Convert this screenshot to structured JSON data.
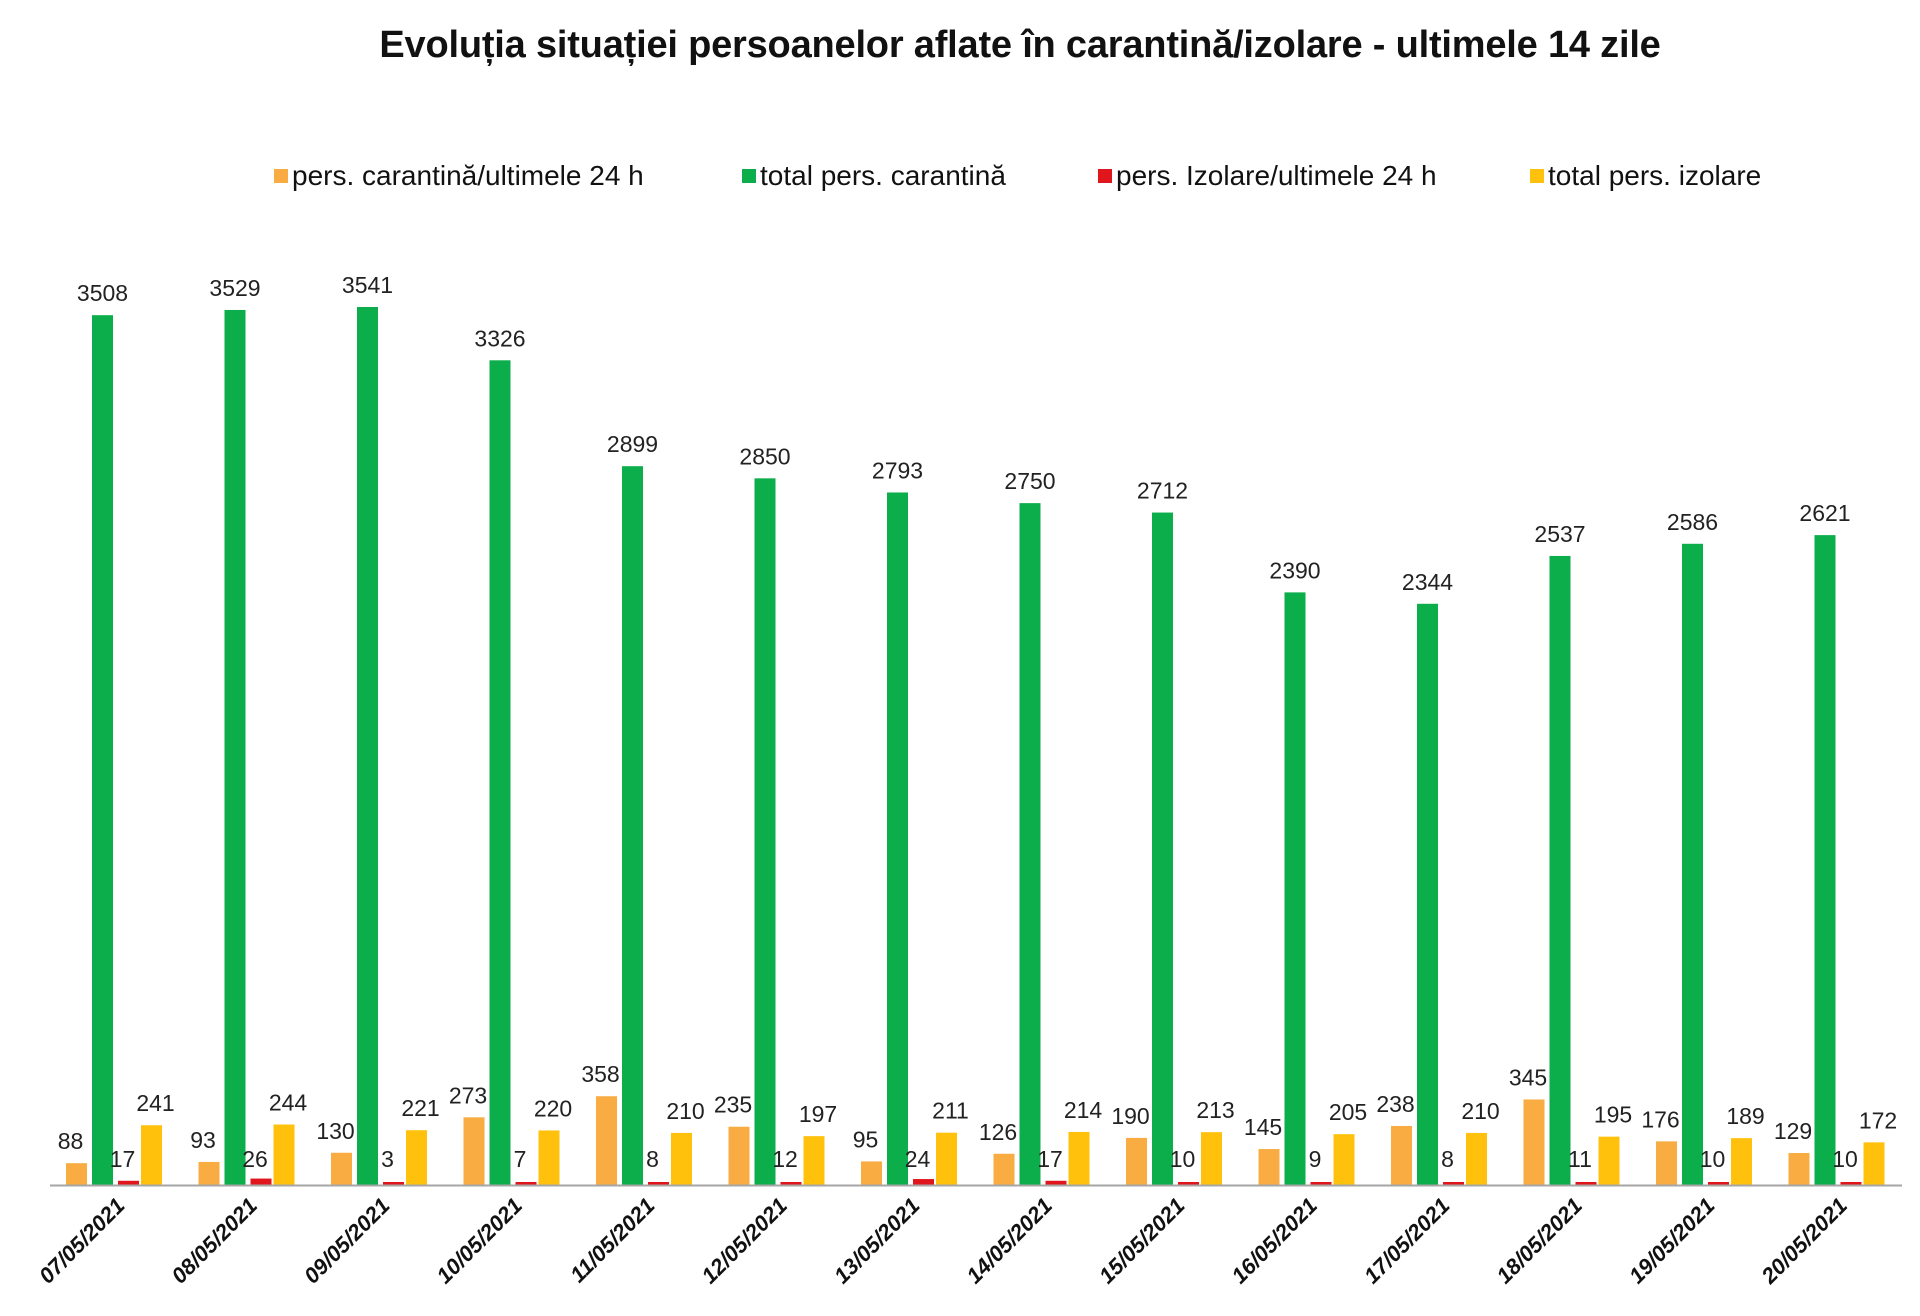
{
  "chart_data": {
    "type": "bar",
    "title": "Evoluția situației persoanelor aflate în carantină/izolare - ultimele 14 zile",
    "xlabel": "",
    "ylabel": "",
    "ylim": [
      0,
      3600
    ],
    "grid": false,
    "legend_position": "top",
    "categories": [
      "07/05/2021",
      "08/05/2021",
      "09/05/2021",
      "10/05/2021",
      "11/05/2021",
      "12/05/2021",
      "13/05/2021",
      "14/05/2021",
      "15/05/2021",
      "16/05/2021",
      "17/05/2021",
      "18/05/2021",
      "19/05/2021",
      "20/05/2021"
    ],
    "series": [
      {
        "name": "pers. carantină/ultimele 24 h",
        "color": "#F8AC42",
        "values": [
          88,
          93,
          130,
          273,
          358,
          235,
          95,
          126,
          190,
          145,
          238,
          345,
          176,
          129
        ]
      },
      {
        "name": "total pers. carantină",
        "color": "#0BAE4B",
        "values": [
          3508,
          3529,
          3541,
          3326,
          2899,
          2850,
          2793,
          2750,
          2712,
          2390,
          2344,
          2537,
          2586,
          2621
        ]
      },
      {
        "name": "pers. Izolare/ultimele 24 h",
        "color": "#E0161C",
        "values": [
          17,
          26,
          3,
          7,
          8,
          12,
          24,
          17,
          10,
          9,
          8,
          11,
          10,
          10
        ]
      },
      {
        "name": "total pers. izolare",
        "color": "#FFC10C",
        "values": [
          241,
          244,
          221,
          220,
          210,
          197,
          211,
          214,
          213,
          205,
          210,
          195,
          189,
          172
        ]
      }
    ]
  },
  "axis_color": "#A6A6A6"
}
